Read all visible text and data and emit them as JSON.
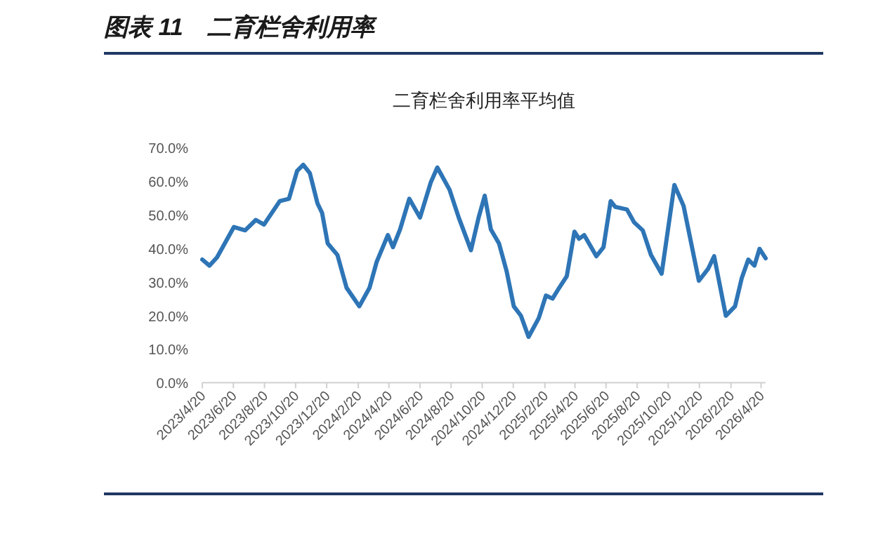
{
  "chart_data": {
    "type": "line",
    "title": "图表 11　二育栏舍利用率",
    "subtitle": "二育栏舍利用率平均值",
    "x": [
      "2023-04-20",
      "2023-05-04",
      "2023-05-19",
      "2023-06-21",
      "2023-07-13",
      "2023-08-03",
      "2023-08-19",
      "2023-09-19",
      "2023-10-07",
      "2023-10-23",
      "2023-11-04",
      "2023-11-17",
      "2023-12-02",
      "2023-12-11",
      "2023-12-22",
      "2024-01-10",
      "2024-01-28",
      "2024-02-22",
      "2024-03-13",
      "2024-03-27",
      "2024-04-18",
      "2024-04-28",
      "2024-05-12",
      "2024-05-30",
      "2024-06-20",
      "2024-07-11",
      "2024-07-24",
      "2024-08-17",
      "2024-09-04",
      "2024-09-28",
      "2024-10-13",
      "2024-10-25",
      "2024-11-06",
      "2024-11-22",
      "2024-12-07",
      "2024-12-21",
      "2025-01-04",
      "2025-01-19",
      "2025-02-08",
      "2025-02-22",
      "2025-03-07",
      "2025-03-20",
      "2025-04-04",
      "2025-04-19",
      "2025-04-28",
      "2025-05-08",
      "2025-06-01",
      "2025-06-15",
      "2025-06-29",
      "2025-07-08",
      "2025-07-31",
      "2025-08-14",
      "2025-08-31",
      "2025-09-16",
      "2025-10-07",
      "2025-11-01",
      "2025-11-19",
      "2025-12-19",
      "2026-01-06",
      "2026-01-18",
      "2026-02-10",
      "2026-02-28",
      "2026-03-13",
      "2026-03-26",
      "2026-04-07",
      "2026-04-17",
      "2026-04-29"
    ],
    "series": [
      {
        "color": "#2e75b6",
        "values": [
          36.6,
          34.8,
          37.3,
          46.3,
          45.3,
          48.4,
          47.0,
          54.0,
          54.7,
          63.0,
          64.8,
          62.3,
          53.3,
          50.5,
          41.4,
          38.0,
          28.2,
          22.7,
          28.2,
          35.9,
          43.9,
          40.3,
          45.6,
          54.7,
          49.1,
          59.5,
          64.0,
          57.4,
          49.1,
          39.4,
          49.1,
          55.6,
          45.6,
          41.4,
          33.1,
          22.7,
          19.9,
          13.6,
          19.2,
          25.9,
          25.0,
          28.2,
          31.7,
          44.9,
          42.8,
          43.9,
          37.6,
          40.3,
          54.0,
          52.3,
          51.5,
          47.7,
          45.3,
          38.0,
          32.4,
          58.8,
          52.6,
          30.3,
          33.8,
          37.6,
          19.9,
          22.7,
          31.0,
          36.6,
          34.8,
          39.8,
          37.0
        ]
      }
    ],
    "xlim": [
      "2023-04-20",
      "2026-04-29"
    ],
    "xticks": [
      {
        "value": "2023-04-20",
        "label": "2023/4/20"
      },
      {
        "value": "2023-06-20",
        "label": "2023/6/20"
      },
      {
        "value": "2023-08-20",
        "label": "2023/8/20"
      },
      {
        "value": "2023-10-20",
        "label": "2023/10/20"
      },
      {
        "value": "2023-12-20",
        "label": "2023/12/20"
      },
      {
        "value": "2024-02-20",
        "label": "2024/2/20"
      },
      {
        "value": "2024-04-20",
        "label": "2024/4/20"
      },
      {
        "value": "2024-06-20",
        "label": "2024/6/20"
      },
      {
        "value": "2024-08-20",
        "label": "2024/8/20"
      },
      {
        "value": "2024-10-20",
        "label": "2024/10/20"
      },
      {
        "value": "2024-12-20",
        "label": "2024/12/20"
      },
      {
        "value": "2025-02-20",
        "label": "2025/2/20"
      },
      {
        "value": "2025-04-20",
        "label": "2025/4/20"
      },
      {
        "value": "2025-06-20",
        "label": "2025/6/20"
      },
      {
        "value": "2025-08-20",
        "label": "2025/8/20"
      },
      {
        "value": "2025-10-20",
        "label": "2025/10/20"
      },
      {
        "value": "2025-12-20",
        "label": "2025/12/20"
      },
      {
        "value": "2026-02-20",
        "label": "2026/2/20"
      },
      {
        "value": "2026-04-20",
        "label": "2026/4/20"
      }
    ],
    "ylim": [
      0,
      70
    ],
    "yticks": [
      {
        "value": 0,
        "label": "0.0%"
      },
      {
        "value": 10,
        "label": "10.0%"
      },
      {
        "value": 20,
        "label": "20.0%"
      },
      {
        "value": 30,
        "label": "30.0%"
      },
      {
        "value": 40,
        "label": "40.0%"
      },
      {
        "value": 50,
        "label": "50.0%"
      },
      {
        "value": 60,
        "label": "60.0%"
      },
      {
        "value": 70,
        "label": "70.0%"
      }
    ],
    "grid": false,
    "marker": "none",
    "line_style": "solid"
  }
}
